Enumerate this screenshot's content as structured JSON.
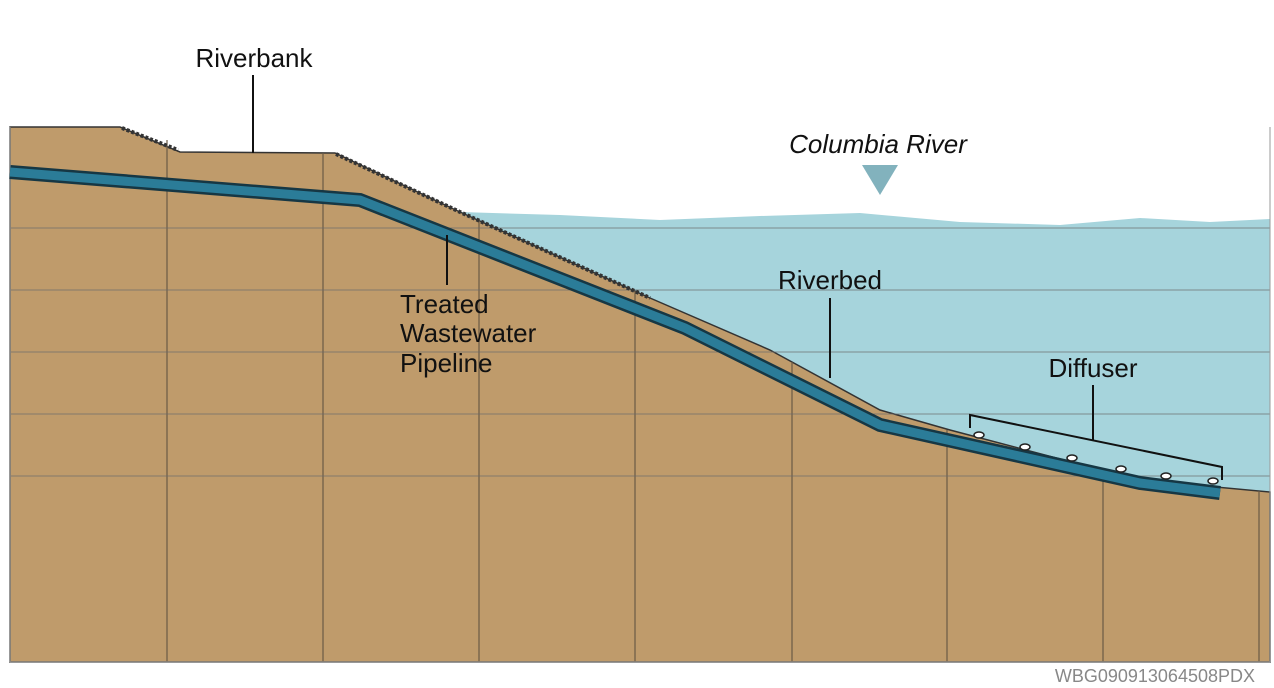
{
  "labels": {
    "riverbank": "Riverbank",
    "river": "Columbia River",
    "pipeline": [
      "Treated",
      "Wastewater",
      "Pipeline"
    ],
    "riverbed": "Riverbed",
    "diffuser": "Diffuser"
  },
  "code": "WBG090913064508PDX"
}
